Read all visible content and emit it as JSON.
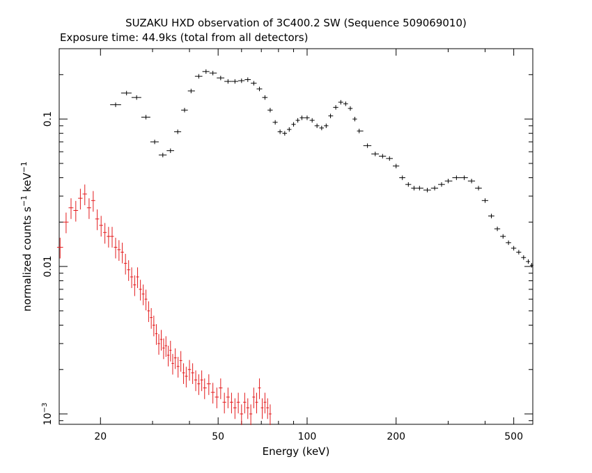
{
  "chart_data": {
    "type": "scatter",
    "title": "SUZAKU HXD observation of 3C400.2 SW (Sequence 509069010)",
    "subtitle": "Exposure time: 44.9ks (total from all detectors)",
    "xlabel": "Energy (keV)",
    "ylabel": {
      "main": "normalized counts s",
      "sup1": "−1",
      "mid": " keV",
      "sup2": "−1"
    },
    "xscale": "log",
    "yscale": "log",
    "xlim": [
      14.5,
      580
    ],
    "ylim": [
      0.00085,
      0.3
    ],
    "x_tick_labels": [
      {
        "value": 20,
        "label": "20"
      },
      {
        "value": 50,
        "label": "50"
      },
      {
        "value": 100,
        "label": "100"
      },
      {
        "value": 200,
        "label": "200"
      },
      {
        "value": 500,
        "label": "500"
      }
    ],
    "y_tick_labels": [
      {
        "value": 0.1,
        "label": "0.1"
      },
      {
        "value": 0.01,
        "label": "0.01"
      },
      {
        "value": 0.001,
        "label": "10",
        "sup": "−3"
      }
    ],
    "colors": {
      "black_series": "#000000",
      "red_series": "#e31a1c",
      "frame": "#000000"
    },
    "series": [
      {
        "color": "black",
        "x": [
          22.5,
          24.5,
          26.5,
          28.5,
          30.5,
          32.5,
          34.5,
          36.5,
          38.5,
          40.5,
          43.0,
          45.5,
          48.0,
          51.0,
          54.0,
          57.0,
          60.0,
          63.0,
          66.0,
          69.0,
          72.0,
          75.0,
          78.0,
          81.0,
          84.0,
          87.0,
          90.0,
          93.0,
          96.0,
          100.0,
          104.0,
          108.0,
          112.0,
          116.0,
          120.0,
          125.0,
          130.0,
          135.0,
          140.0,
          145.0,
          150.0,
          160.0,
          170.0,
          180.0,
          190.0,
          200.0,
          210.0,
          220.0,
          230.0,
          240.0,
          255.0,
          270.0,
          285.0,
          300.0,
          320.0,
          340.0,
          360.0,
          380.0,
          400.0,
          420.0,
          440.0,
          460.0,
          480.0,
          500.0,
          520.0,
          540.0,
          560.0,
          575.0
        ],
        "y": [
          0.125,
          0.15,
          0.14,
          0.103,
          0.07,
          0.057,
          0.061,
          0.082,
          0.115,
          0.155,
          0.195,
          0.21,
          0.205,
          0.19,
          0.18,
          0.18,
          0.182,
          0.185,
          0.175,
          0.16,
          0.14,
          0.115,
          0.095,
          0.082,
          0.08,
          0.085,
          0.092,
          0.098,
          0.102,
          0.102,
          0.098,
          0.09,
          0.087,
          0.09,
          0.105,
          0.12,
          0.13,
          0.127,
          0.118,
          0.1,
          0.083,
          0.066,
          0.058,
          0.056,
          0.054,
          0.048,
          0.04,
          0.036,
          0.034,
          0.034,
          0.033,
          0.034,
          0.036,
          0.038,
          0.04,
          0.04,
          0.038,
          0.034,
          0.028,
          0.022,
          0.018,
          0.016,
          0.0145,
          0.0133,
          0.0125,
          0.0115,
          0.0108,
          0.0102
        ]
      },
      {
        "color": "red",
        "x": [
          14.6,
          15.3,
          15.9,
          16.5,
          17.1,
          17.7,
          18.3,
          18.9,
          19.5,
          20.1,
          20.7,
          21.3,
          21.9,
          22.5,
          23.1,
          23.7,
          24.3,
          24.9,
          25.5,
          26.1,
          26.7,
          27.3,
          27.9,
          28.5,
          29.1,
          29.7,
          30.3,
          30.9,
          31.5,
          32.1,
          32.7,
          33.3,
          33.9,
          34.5,
          35.1,
          35.8,
          36.6,
          37.4,
          38.2,
          39.0,
          40.0,
          41.0,
          42.0,
          43.0,
          44.0,
          45.0,
          46.5,
          48.0,
          49.5,
          51.0,
          52.5,
          54.0,
          55.5,
          57.0,
          58.5,
          60.0,
          61.5,
          63.0,
          64.5,
          66.0,
          67.5,
          69.0,
          70.5,
          72.0,
          73.5,
          75.0
        ],
        "y": [
          0.0135,
          0.02,
          0.025,
          0.024,
          0.029,
          0.031,
          0.025,
          0.028,
          0.021,
          0.019,
          0.017,
          0.016,
          0.016,
          0.0135,
          0.013,
          0.0125,
          0.0105,
          0.0095,
          0.0085,
          0.0075,
          0.0085,
          0.007,
          0.0065,
          0.006,
          0.005,
          0.0045,
          0.004,
          0.0035,
          0.003,
          0.0032,
          0.0028,
          0.0029,
          0.0025,
          0.0027,
          0.0022,
          0.0024,
          0.0021,
          0.0023,
          0.0019,
          0.0018,
          0.002,
          0.0019,
          0.0017,
          0.0016,
          0.0017,
          0.0015,
          0.0016,
          0.0014,
          0.0013,
          0.0015,
          0.0012,
          0.0013,
          0.0012,
          0.0011,
          0.0012,
          0.001,
          0.0012,
          0.0011,
          0.001,
          0.0013,
          0.0012,
          0.0015,
          0.0011,
          0.0012,
          0.0011,
          0.001
        ]
      }
    ]
  }
}
